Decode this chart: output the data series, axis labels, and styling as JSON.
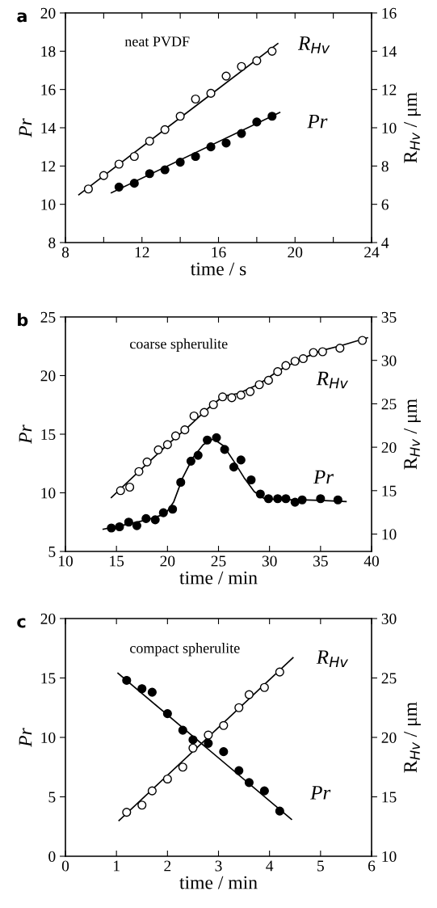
{
  "chart_data": [
    {
      "type": "scatter",
      "title": "a",
      "xlabel": "time / s",
      "ylabel": "Pr",
      "y2label": "R$_{Hv}$ / μm",
      "marker": "circle",
      "annotations": [
        "neat PVDF"
      ],
      "xlim": [
        8,
        24
      ],
      "xticks": [
        8,
        {
          "value": 10,
          "label": null
        },
        12,
        {
          "value": 14,
          "label": null
        },
        16,
        {
          "value": 18,
          "label": null
        },
        20,
        {
          "value": 22,
          "label": null
        },
        24
      ],
      "ylim": [
        8,
        20
      ],
      "yticks": [
        8,
        10,
        12,
        14,
        16,
        18,
        20
      ],
      "y2lim": [
        4,
        16
      ],
      "y2ticks": [
        4,
        6,
        8,
        10,
        12,
        14,
        16
      ],
      "series": [
        {
          "name": "R$_{Hv}$",
          "axis": "y2",
          "color": "#ffffff",
          "x": [
            9.2,
            10.0,
            10.8,
            11.6,
            12.4,
            13.2,
            14.0,
            14.8,
            15.6,
            16.4,
            17.2,
            18.0,
            18.8
          ],
          "values": [
            6.8,
            7.5,
            8.1,
            8.5,
            9.3,
            9.9,
            10.6,
            11.5,
            11.8,
            12.7,
            13.2,
            13.5,
            14.0
          ]
        },
        {
          "name": "Pr",
          "color": "#000000",
          "x": [
            10.8,
            11.6,
            12.4,
            13.2,
            14.0,
            14.8,
            15.6,
            16.4,
            17.2,
            18.0,
            18.8
          ],
          "values": [
            10.9,
            11.1,
            11.6,
            11.8,
            12.2,
            12.5,
            13.0,
            13.2,
            13.7,
            14.3,
            14.6
          ]
        },
        {
          "type": "line",
          "axis": "y2",
          "color": "#000000",
          "marker": "none",
          "x": [
            8.7,
            19.1
          ],
          "values": [
            6.5,
            14.4
          ]
        },
        {
          "type": "line",
          "color": "#000000",
          "marker": "none",
          "x": [
            10.4,
            19.2
          ],
          "values": [
            10.6,
            14.8
          ]
        }
      ]
    },
    {
      "type": "scatter",
      "title": "b",
      "xlabel": "time / min",
      "ylabel": "Pr",
      "y2label": "R$_{Hv}$ / μm",
      "marker": "circle",
      "annotations": [
        "coarse spherulite"
      ],
      "xlim": [
        10,
        40
      ],
      "xticks": [
        10,
        15,
        20,
        25,
        30,
        35,
        40
      ],
      "ylim": [
        5,
        25
      ],
      "yticks": [
        5,
        10,
        15,
        20,
        25
      ],
      "y2lim": [
        8,
        35
      ],
      "y2ticks": [
        10,
        15,
        20,
        25,
        30,
        35
      ],
      "series": [
        {
          "name": "R$_{Hv}$",
          "axis": "y2",
          "color": "#ffffff",
          "x": [
            15.4,
            16.3,
            17.2,
            18.0,
            19.1,
            20.0,
            20.8,
            21.7,
            22.6,
            23.6,
            24.5,
            25.4,
            26.3,
            27.2,
            28.1,
            29.0,
            29.9,
            30.8,
            31.6,
            32.5,
            33.3,
            34.3,
            35.2,
            36.9,
            39.1
          ],
          "values": [
            15.0,
            15.4,
            17.2,
            18.3,
            19.7,
            20.3,
            21.3,
            22.0,
            23.6,
            24.0,
            24.9,
            25.8,
            25.7,
            26.0,
            26.4,
            27.2,
            27.7,
            28.7,
            29.4,
            29.9,
            30.2,
            30.9,
            31.0,
            31.4,
            32.3
          ]
        },
        {
          "name": "Pr",
          "color": "#000000",
          "x": [
            14.5,
            15.3,
            16.2,
            17.0,
            17.9,
            18.8,
            19.6,
            20.5,
            21.3,
            22.3,
            23.0,
            23.9,
            24.8,
            25.6,
            26.5,
            27.2,
            28.2,
            29.1,
            29.9,
            30.8,
            31.6,
            32.5,
            33.2,
            35.0,
            36.7
          ],
          "values": [
            7.0,
            7.1,
            7.5,
            7.2,
            7.8,
            7.7,
            8.3,
            8.6,
            10.9,
            12.7,
            13.2,
            14.5,
            14.7,
            13.7,
            12.2,
            12.8,
            11.1,
            9.9,
            9.5,
            9.5,
            9.5,
            9.2,
            9.4,
            9.5,
            9.4
          ]
        },
        {
          "type": "line",
          "axis": "y2",
          "color": "#000000",
          "marker": "none",
          "x": [
            14.5,
            17.0,
            20.0,
            22.0,
            24.0,
            25.5,
            27.0,
            29.0,
            31.0,
            33.0,
            35.0,
            37.0,
            39.6
          ],
          "values": [
            14.2,
            17.0,
            20.3,
            22.3,
            24.5,
            25.9,
            26.2,
            27.3,
            28.9,
            30.1,
            31.1,
            31.7,
            32.6
          ]
        },
        {
          "type": "line",
          "color": "#000000",
          "marker": "none",
          "x": [
            13.7,
            16.0,
            18.0,
            19.8,
            20.6,
            21.5,
            22.5,
            23.5,
            24.5,
            25.5,
            26.5,
            27.5,
            28.5,
            29.5,
            31.0,
            33.0,
            35.0,
            37.5
          ],
          "values": [
            6.9,
            7.3,
            7.7,
            8.2,
            9.2,
            11.3,
            13.0,
            14.1,
            14.6,
            14.0,
            12.7,
            11.3,
            10.1,
            9.5,
            9.4,
            9.4,
            9.35,
            9.25
          ]
        }
      ]
    },
    {
      "type": "scatter",
      "title": "c",
      "xlabel": "time / min",
      "ylabel": "Pr",
      "y2label": "R$_{Hv}$ / μm",
      "marker": "circle",
      "annotations": [
        "compact spherulite"
      ],
      "xlim": [
        0,
        6
      ],
      "xticks": [
        0,
        1,
        2,
        3,
        4,
        5,
        6
      ],
      "ylim": [
        0,
        20
      ],
      "yticks": [
        0,
        5,
        10,
        15,
        20
      ],
      "y2lim": [
        10,
        30
      ],
      "y2ticks": [
        10,
        15,
        20,
        25,
        30
      ],
      "series": [
        {
          "name": "R$_{Hv}$",
          "axis": "y2",
          "color": "#ffffff",
          "x": [
            1.2,
            1.5,
            1.7,
            2.0,
            2.3,
            2.5,
            2.8,
            3.1,
            3.4,
            3.6,
            3.9,
            4.2
          ],
          "values": [
            13.7,
            14.3,
            15.5,
            16.5,
            17.5,
            19.1,
            20.2,
            21.0,
            22.5,
            23.6,
            24.2,
            25.5
          ]
        },
        {
          "name": "Pr",
          "color": "#000000",
          "x": [
            1.2,
            1.5,
            1.7,
            2.0,
            2.3,
            2.5,
            2.8,
            3.1,
            3.4,
            3.6,
            3.9,
            4.2
          ],
          "values": [
            14.8,
            14.1,
            13.8,
            12.0,
            10.6,
            9.8,
            9.5,
            8.8,
            7.2,
            6.2,
            5.5,
            3.8
          ]
        },
        {
          "type": "line",
          "axis": "y2",
          "color": "#000000",
          "marker": "none",
          "x": [
            1.05,
            4.46
          ],
          "values": [
            13.0,
            26.7
          ]
        },
        {
          "type": "line",
          "color": "#000000",
          "marker": "none",
          "x": [
            1.03,
            4.43
          ],
          "values": [
            15.4,
            3.1
          ]
        }
      ]
    }
  ]
}
